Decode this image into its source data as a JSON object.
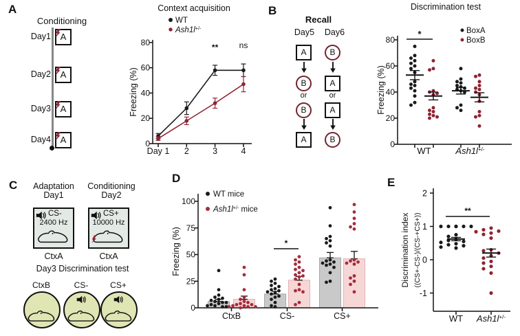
{
  "genotype": {
    "wt": "WT",
    "mut_base": "Ash1l",
    "mut_sup": "+/-"
  },
  "colors": {
    "ink": "#111111",
    "maroon": "#8e2433",
    "red_dot": "#a62b3c",
    "bar_gray": "#c9c9c9",
    "bar_gray_edge": "#9a9a9a",
    "bar_pink": "#f7d6d6",
    "bar_pink_edge": "#dba4a4",
    "box_fill": "#e3eae6",
    "circle_fill": "#e0e5b4",
    "timeline_gray": "#868686"
  },
  "panels": {
    "a": {
      "label": "A",
      "title": "Conditioning",
      "days": [
        "Day1",
        "Day2",
        "Day3",
        "Day4"
      ],
      "context": "A"
    },
    "b": {
      "label": "B",
      "title": "Recall",
      "day5": "Day5",
      "day6": "Day6",
      "or": "or",
      "day5_seq": [
        "A",
        "B",
        "B",
        "A"
      ],
      "day6_seq": [
        "B",
        "A",
        "A",
        "B"
      ]
    },
    "c": {
      "label": "C",
      "adaptation": "Adaptation",
      "day1": "Day1",
      "conditioning": "Conditioning",
      "day2": "Day2",
      "cs_minus": "CS-",
      "cs_minus_hz": "2400 Hz",
      "cs_plus": "CS+",
      "cs_plus_hz": "10000 Hz",
      "ctx_a": "CtxA",
      "day3_line": "Day3  Discrimination test",
      "circle_labels": [
        "CtxB",
        "CS-",
        "CS+"
      ]
    },
    "d": {
      "label": "D"
    },
    "e": {
      "label": "E"
    }
  },
  "chart_data": [
    {
      "id": "context_acquisition",
      "type": "line",
      "title": "Context acquisition",
      "ylabel": "Freezing (%)",
      "ylim": [
        0,
        80
      ],
      "yticks": [
        0,
        20,
        40,
        60,
        80
      ],
      "xtick_labels": [
        "Day 1",
        "2",
        "3",
        "4"
      ],
      "series": [
        {
          "name": "WT",
          "color": "#1a1a1a",
          "values": [
            6,
            28,
            58,
            58
          ],
          "sem": [
            2,
            5,
            4,
            5
          ]
        },
        {
          "name": "Ash1l+/-",
          "is_genotype": true,
          "color": "#8e2433",
          "values": [
            4,
            18,
            32,
            47
          ],
          "sem": [
            1.5,
            3,
            4,
            6
          ]
        }
      ],
      "annotations": [
        {
          "day": 3,
          "text": "**"
        },
        {
          "day": 4,
          "text": "ns"
        }
      ]
    },
    {
      "id": "discrimination_test",
      "type": "scatter",
      "title": "Discrimination test",
      "ylabel": "Freezing (%)",
      "ylim": [
        0,
        80
      ],
      "yticks": [
        0,
        20,
        40,
        60,
        80
      ],
      "groups": [
        "WT",
        "Ash1l+/-"
      ],
      "legend": [
        {
          "name": "BoxA",
          "color": "#1a1a1a"
        },
        {
          "name": "BoxB",
          "color": "#8e2433"
        }
      ],
      "point_sets": [
        {
          "group": "WT",
          "box": "BoxA",
          "color": "#1a1a1a",
          "values": [
            75,
            68,
            66,
            64,
            62,
            60,
            58,
            55,
            48,
            46,
            45,
            43,
            41,
            37,
            32,
            30
          ]
        },
        {
          "group": "WT",
          "box": "BoxB",
          "color": "#8e2433",
          "values": [
            64,
            58,
            57,
            41,
            40,
            39,
            38,
            28,
            26,
            25,
            23,
            22,
            21,
            20
          ]
        },
        {
          "group": "Ash1l+/-",
          "box": "BoxA",
          "color": "#1a1a1a",
          "values": [
            58,
            50,
            48,
            47,
            45,
            44,
            43,
            42,
            41,
            40,
            30,
            28,
            26
          ]
        },
        {
          "group": "Ash1l+/-",
          "box": "BoxB",
          "color": "#8e2433",
          "values": [
            53,
            52,
            48,
            45,
            43,
            42,
            40,
            38,
            33,
            25,
            22,
            21,
            14
          ]
        }
      ],
      "means": [
        53,
        37,
        41,
        36
      ],
      "sems": [
        3.5,
        3,
        2.5,
        3.5
      ],
      "sig": {
        "text": "*",
        "over": "WT"
      }
    },
    {
      "id": "tone_discrimination",
      "type": "bar",
      "ylabel": "Freezing (%)",
      "ylim": [
        0,
        100
      ],
      "yticks": [
        0,
        25,
        50,
        75,
        100
      ],
      "categories": [
        "CtxB",
        "CS-",
        "CS+"
      ],
      "series": [
        {
          "name": "WT mice",
          "fill": "#c9c9c9",
          "edge": "#9a9a9a",
          "dot": "#1a1a1a",
          "means": [
            6,
            13,
            47
          ],
          "sem": [
            2,
            2.5,
            5
          ],
          "points": [
            [
              35,
              17,
              12,
              10,
              9,
              8,
              7,
              6,
              5,
              5,
              4,
              3,
              2,
              2,
              1,
              1
            ],
            [
              27,
              25,
              23,
              21,
              20,
              18,
              17,
              16,
              15,
              14,
              13,
              11,
              10,
              8,
              5,
              2,
              1
            ],
            [
              94,
              77,
              67,
              65,
              63,
              61,
              58,
              45,
              44,
              43,
              42,
              41,
              40,
              38,
              33,
              25,
              24
            ]
          ]
        },
        {
          "name": "Ash1l+/- mice",
          "is_genotype": true,
          "suffix": " mice",
          "fill": "#f7d6d6",
          "edge": "#dba4a4",
          "dot": "#a62b3c",
          "means": [
            8,
            26,
            46
          ],
          "sem": [
            3,
            3.5,
            7
          ],
          "points": [
            [
              38,
              31,
              17,
              10,
              8,
              6,
              5,
              4,
              3,
              3,
              2,
              2,
              1,
              1,
              1,
              0
            ],
            [
              48,
              45,
              43,
              41,
              38,
              36,
              35,
              33,
              31,
              30,
              29,
              27,
              22,
              17,
              16,
              15,
              5,
              3
            ],
            [
              97,
              90,
              84,
              79,
              76,
              74,
              45,
              44,
              43,
              42,
              41,
              30,
              28,
              25,
              22,
              15
            ]
          ]
        }
      ],
      "sig": {
        "text": "*",
        "category": "CS-"
      }
    },
    {
      "id": "discrimination_index",
      "type": "scatter",
      "ylabel_line1": "Discrimination index",
      "ylabel_line2": "((CS+-CS-)/(CS-+CS+))",
      "ylim": [
        -1.4,
        2
      ],
      "yticks": [
        -1,
        0,
        1,
        2
      ],
      "groups": [
        "WT",
        "Ash1l+/-"
      ],
      "point_sets": [
        {
          "group": "WT",
          "color": "#1a1a1a",
          "values": [
            1.0,
            1.0,
            1.0,
            1.0,
            1.0,
            1.0,
            0.75,
            0.7,
            0.62,
            0.58,
            0.55,
            0.52,
            0.48,
            0.45,
            0.42,
            0.38,
            0.35
          ]
        },
        {
          "group": "Ash1l+/-",
          "color": "#8e2433",
          "values": [
            0.95,
            0.9,
            0.86,
            0.84,
            0.8,
            0.76,
            0.65,
            0.3,
            0.27,
            0.2,
            0.12,
            0.05,
            -0.05,
            -0.1,
            -0.2,
            -0.27,
            -0.4,
            -1.0
          ]
        }
      ],
      "means": [
        0.62,
        0.2
      ],
      "sems": [
        0.05,
        0.12
      ],
      "sig": {
        "text": "**"
      }
    }
  ]
}
